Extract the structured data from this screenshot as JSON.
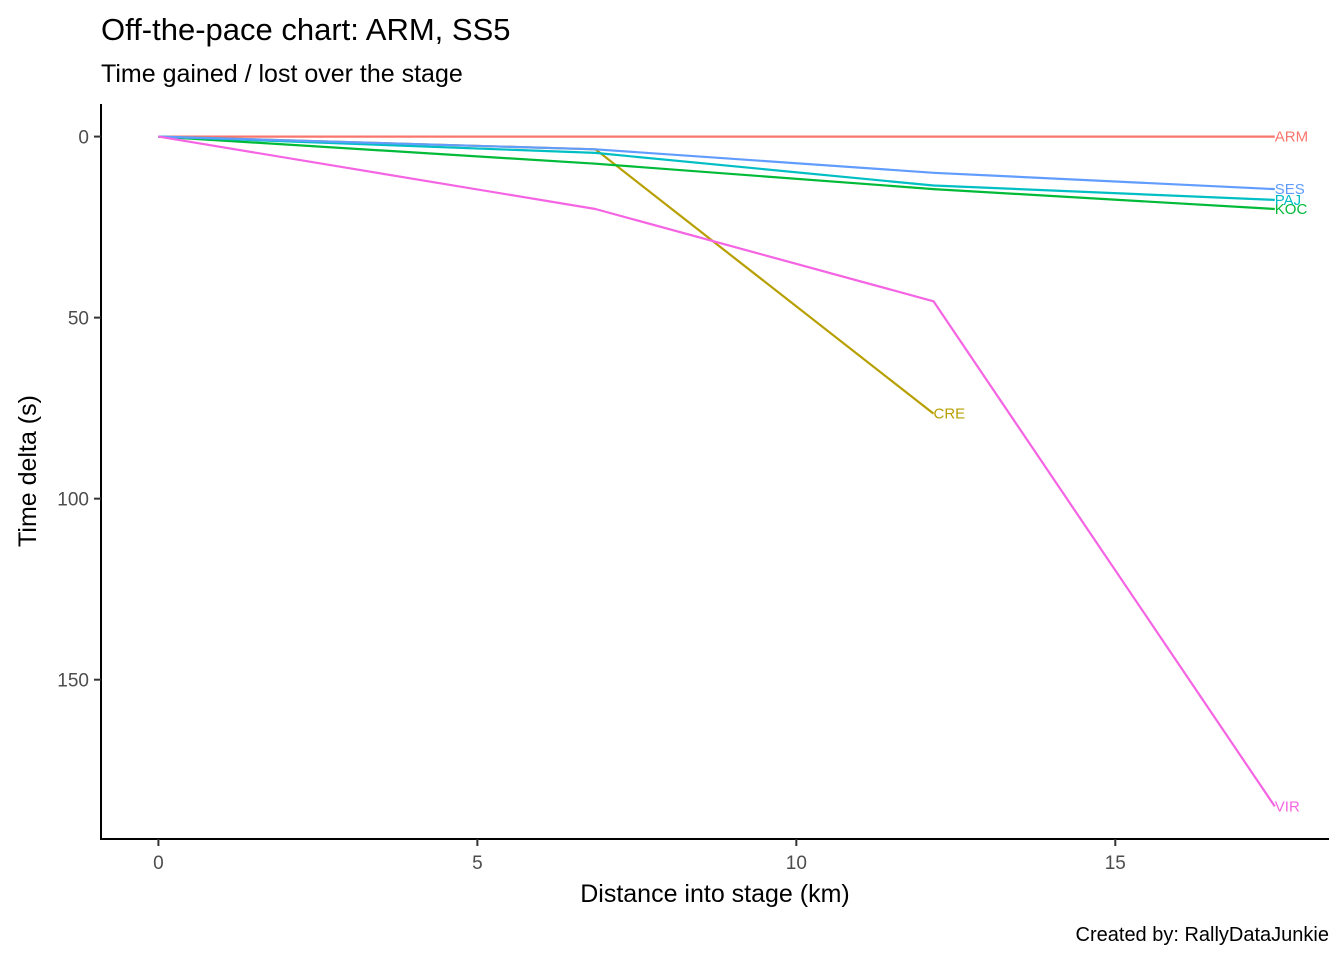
{
  "chart_data": {
    "type": "line",
    "title": "Off-the-pace chart: ARM, SS5",
    "subtitle": "Time gained / lost over the stage",
    "xlabel": "Distance into stage (km)",
    "ylabel": "Time delta (s)",
    "caption": "Created by: RallyDataJunkie",
    "xlim": [
      -0.9,
      18.35
    ],
    "ylim": [
      -9,
      194
    ],
    "y_reversed": true,
    "x_ticks": [
      0,
      5,
      10,
      15
    ],
    "y_ticks": [
      0,
      50,
      100,
      150
    ],
    "grid": false,
    "legend": "none (direct labels at line ends)",
    "series": [
      {
        "name": "ARM",
        "color": "#F8766D",
        "x": [
          0,
          6.85,
          12.15,
          17.5
        ],
        "y": [
          0,
          0,
          0,
          0
        ]
      },
      {
        "name": "CRE",
        "color": "#B79F00",
        "x": [
          0,
          6.85,
          12.15
        ],
        "y": [
          0,
          3.5,
          76.5
        ]
      },
      {
        "name": "KOC",
        "color": "#00BA38",
        "x": [
          0,
          6.85,
          12.15,
          17.5
        ],
        "y": [
          0,
          7.5,
          14.5,
          20
        ]
      },
      {
        "name": "PAJ",
        "color": "#00BFC4",
        "x": [
          0,
          6.85,
          12.15,
          17.5
        ],
        "y": [
          0,
          4.5,
          13.5,
          17.5
        ]
      },
      {
        "name": "SES",
        "color": "#619CFF",
        "x": [
          0,
          6.85,
          12.15,
          17.5
        ],
        "y": [
          0,
          3.5,
          10,
          14.5
        ]
      },
      {
        "name": "VIR",
        "color": "#F564E3",
        "x": [
          0,
          6.85,
          12.15,
          17.5
        ],
        "y": [
          0,
          20,
          45.5,
          185
        ]
      }
    ]
  }
}
